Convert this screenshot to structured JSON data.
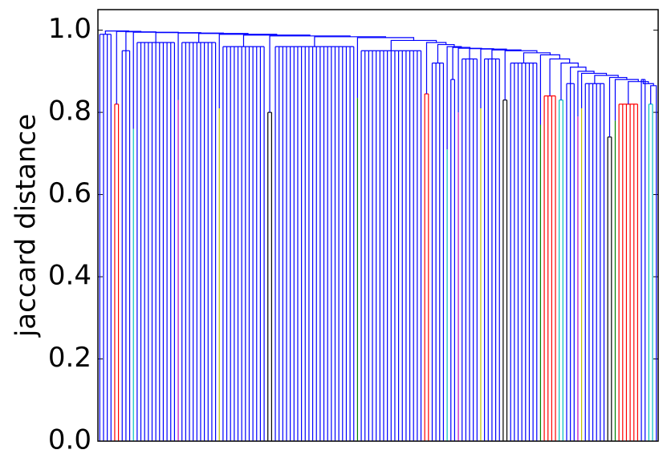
{
  "chart_data": {
    "type": "dendrogram",
    "ylabel": "jaccard distance",
    "ylim": [
      0,
      1.05
    ],
    "yticks": [
      {
        "value": 0,
        "label": "0.0"
      },
      0.2,
      0.4,
      0.6,
      0.8,
      {
        "value": 1,
        "label": "1.0"
      }
    ],
    "link_color": "#0000ff",
    "groups": [
      {
        "h": 0.99,
        "n": 4,
        "color": "#0000ff",
        "join": 0.998
      },
      {
        "h": 0.82,
        "n": 2,
        "color": "#ff0000",
        "join": 0.997
      },
      {
        "h": 0.95,
        "n": 3,
        "color": "#0000ff",
        "join": 0.996
      },
      {
        "h": 0.76,
        "n": 1,
        "color": "#00bfbf",
        "join": 0.995
      },
      {
        "h": 0.97,
        "n": 11,
        "color": "#0000ff",
        "join": 0.994
      },
      {
        "h": 0.83,
        "n": 1,
        "color": "#bf00bf",
        "join": 0.993
      },
      {
        "h": 0.97,
        "n": 10,
        "color": "#0000ff",
        "join": 0.992
      },
      {
        "h": 0.81,
        "n": 1,
        "color": "#bfbf00",
        "join": 0.99
      },
      {
        "h": 0.96,
        "n": 12,
        "color": "#0000ff",
        "join": 0.988
      },
      {
        "h": 0.8,
        "n": 2,
        "color": "#000000",
        "join": 0.986
      },
      {
        "h": 0.96,
        "n": 22,
        "color": "#0000ff",
        "join": 0.984
      },
      {
        "h": 0.835,
        "n": 1,
        "color": "#008000",
        "join": 0.982
      },
      {
        "h": 0.95,
        "n": 17,
        "color": "#0000ff",
        "join": 0.975
      },
      {
        "h": 0.845,
        "n": 2,
        "color": "#ff0000",
        "join": 0.97
      },
      {
        "h": 0.92,
        "n": 4,
        "color": "#0000ff",
        "join": 0.965
      },
      {
        "h": 0.71,
        "n": 1,
        "color": "#00bfbf",
        "join": 0.96
      },
      {
        "h": 0.88,
        "n": 2,
        "color": "#0000ff",
        "join": 0.958
      },
      {
        "h": 0.8,
        "n": 1,
        "color": "#bf00bf",
        "join": 0.956
      },
      {
        "h": 0.93,
        "n": 5,
        "color": "#0000ff",
        "join": 0.955
      },
      {
        "h": 0.81,
        "n": 1,
        "color": "#bfbf00",
        "join": 0.954
      },
      {
        "h": 0.93,
        "n": 5,
        "color": "#0000ff",
        "join": 0.952
      },
      {
        "h": 0.83,
        "n": 2,
        "color": "#000000",
        "join": 0.95
      },
      {
        "h": 0.92,
        "n": 8,
        "color": "#0000ff",
        "join": 0.945
      },
      {
        "h": 0.77,
        "n": 1,
        "color": "#008000",
        "join": 0.94
      },
      {
        "h": 0.84,
        "n": 4,
        "color": "#ff0000",
        "join": 0.93
      },
      {
        "h": 0.83,
        "n": 2,
        "color": "#00bfbf",
        "join": 0.92
      },
      {
        "h": 0.87,
        "n": 3,
        "color": "#0000ff",
        "join": 0.91
      },
      {
        "h": 0.79,
        "n": 1,
        "color": "#bf00bf",
        "join": 0.9
      },
      {
        "h": 0.81,
        "n": 1,
        "color": "#bfbf00",
        "join": 0.895
      },
      {
        "h": 0.87,
        "n": 6,
        "color": "#0000ff",
        "join": 0.89
      },
      {
        "h": 0.74,
        "n": 2,
        "color": "#000000",
        "join": 0.885
      },
      {
        "h": 0.78,
        "n": 1,
        "color": "#008000",
        "join": 0.88
      },
      {
        "h": 0.82,
        "n": 6,
        "color": "#ff0000",
        "join": 0.875
      },
      {
        "h": 0.88,
        "n": 2,
        "color": "#0000ff",
        "join": 0.87
      },
      {
        "h": 0.82,
        "n": 2,
        "color": "#00bfbf",
        "join": 0.865
      },
      {
        "h": 0.85,
        "n": 1,
        "color": "#0000ff",
        "join": null
      }
    ]
  }
}
